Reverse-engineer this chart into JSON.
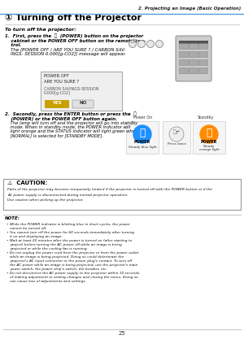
{
  "bg_color": "#ffffff",
  "header_line_color": "#5b9bd5",
  "header_text": "2. Projecting an Image (Basic Operation)",
  "section_title": "① Turning off the Projector",
  "intro_text": "To turn off the projector:",
  "step1_lines_bold": [
    "1.  First, press the  Ⓟ  (POWER) button on the projector",
    "    cabinet or the POWER OFF button on the remote con-",
    "    trol."
  ],
  "step1_lines_italic": [
    "    The [POWER OFF / ARE YOU SURE ? / CARBON SAV-",
    "    INGS- SESSION 0.000[g-CO2]] message will appear."
  ],
  "step2_lines_bold": [
    "2.  Secondly, press the ENTER button or press the  Ⓟ",
    "    (POWER) or the POWER OFF button again."
  ],
  "step2_lines_italic": [
    "    The lamp will turn off and the projector will go into standby",
    "    mode. When in standby mode, the POWER indicator will",
    "    light orange and the STATUS indicator will light green when",
    "    [NORMAL] is selected for [STANDBY MODE]."
  ],
  "dialog_text1": "POWER OFF",
  "dialog_text2": "ARE YOU SURE ?",
  "dialog_text3": "CARBON SAVINGS-SESSION",
  "dialog_text4": "0.000[g-CO2]",
  "yes_color": "#c8a000",
  "no_color": "#d0d0d0",
  "power_on_label": "Power On",
  "standby_label": "Standby",
  "power_label": "POWER",
  "blue_light_label": "Steady blue light",
  "press_label": "Press twice",
  "orange_light_label1": "Steady",
  "orange_light_label2": "orange light",
  "caution_title": "⚠  CAUTION:",
  "caution_lines": [
    "Parts of the projector may become temporarily heated if the projector is turned off with the POWER button or if the",
    "AC power supply is disconnected during normal projector operation.",
    "Use caution when picking up the projector."
  ],
  "note_title": "NOTE:",
  "note_bullets": [
    "While the POWER indicator is blinking blue in short cycles, the power cannot be turned off.",
    "You cannot turn off the power for 60 seconds immediately after turning it on and displaying an image.",
    "Wait at least 20 minutes after the power is turned on (after starting to project) before turning the AC power off while an image is being projected or while the cooling fan is running.",
    "Do not unplug the power cord from the projector or from the power outlet while an image is being projected. Doing so could deteriorate the projector's AC input connector or the power plug's contact. To turn off the AC power while an image is being projected, use the projector's main power switch, the power strip's switch, the breaker, etc.",
    "Do not disconnect the AC power supply to the projector within 10 seconds of making adjustment or setting changes and closing the menu. Doing so can cause loss of adjustments and settings."
  ],
  "page_num": "25"
}
